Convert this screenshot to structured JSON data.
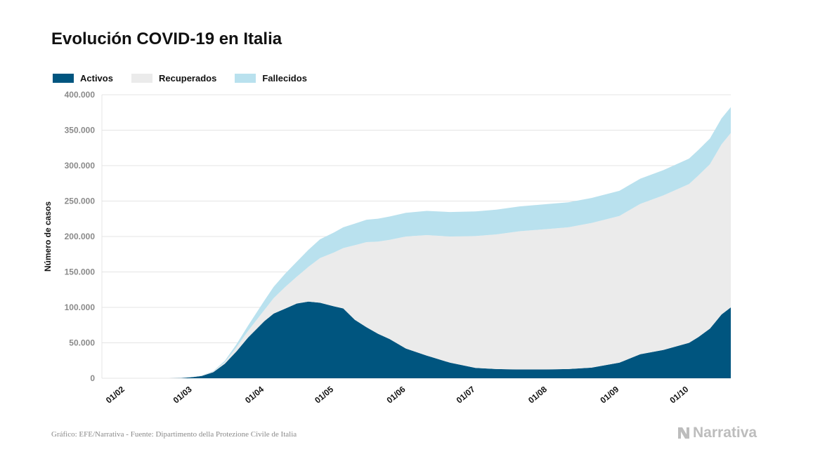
{
  "header": {
    "title": "Evolución COVID-19 en Italia"
  },
  "legend": {
    "items": [
      {
        "label": "Activos",
        "color": "#00557f"
      },
      {
        "label": "Recuperados",
        "color": "#ebebeb"
      },
      {
        "label": "Fallecidos",
        "color": "#b9e1ee"
      }
    ]
  },
  "footer": {
    "source": "Gráfico: EFE/Narrativa - Fuente: Dipartimento della Protezione Civile de Italia",
    "brand": "Narrativa"
  },
  "chart_data": {
    "type": "area",
    "stacked": true,
    "title": "Evolución COVID-19 en Italia",
    "ylabel": "Número de casos",
    "xlabel": "",
    "ylim": [
      0,
      400000
    ],
    "y_ticks": [
      "0",
      "50.000",
      "100.000",
      "150.000",
      "200.000",
      "250.000",
      "300.000",
      "350.000",
      "400.000"
    ],
    "x_ticks": [
      "01/02",
      "01/03",
      "01/04",
      "01/05",
      "01/06",
      "01/07",
      "01/08",
      "01/09",
      "01/10"
    ],
    "x_range": [
      "2020-01-22",
      "2020-10-19"
    ],
    "grid": true,
    "legend_position": "top-left",
    "x": [
      "2020-02-20",
      "2020-02-25",
      "2020-03-01",
      "2020-03-05",
      "2020-03-10",
      "2020-03-15",
      "2020-03-20",
      "2020-03-25",
      "2020-04-01",
      "2020-04-05",
      "2020-04-10",
      "2020-04-15",
      "2020-04-20",
      "2020-04-25",
      "2020-05-01",
      "2020-05-05",
      "2020-05-10",
      "2020-05-15",
      "2020-05-20",
      "2020-05-25",
      "2020-06-01",
      "2020-06-10",
      "2020-06-20",
      "2020-07-01",
      "2020-07-10",
      "2020-07-20",
      "2020-08-01",
      "2020-08-10",
      "2020-08-20",
      "2020-09-01",
      "2020-09-10",
      "2020-09-20",
      "2020-10-01",
      "2020-10-05",
      "2020-10-10",
      "2020-10-15",
      "2020-10-19"
    ],
    "series": [
      {
        "name": "Activos",
        "color": "#00557f",
        "values": [
          0,
          300,
          1600,
          3300,
          8500,
          20600,
          37900,
          57500,
          80600,
          91200,
          98300,
          105400,
          108200,
          106500,
          101500,
          98500,
          82500,
          72100,
          62800,
          55300,
          42000,
          32000,
          22000,
          14600,
          13000,
          12400,
          12500,
          13000,
          15000,
          22000,
          34000,
          40000,
          50000,
          58000,
          70000,
          90000,
          100000
        ]
      },
      {
        "name": "Recuperados",
        "color": "#ebebeb",
        "values": [
          0,
          0,
          100,
          500,
          1000,
          2300,
          6000,
          9400,
          15700,
          21800,
          30500,
          38000,
          48900,
          63100,
          75900,
          85200,
          105200,
          120000,
          130000,
          140000,
          158000,
          170000,
          178000,
          186000,
          190000,
          195000,
          198000,
          200000,
          204000,
          207000,
          212000,
          218000,
          224000,
          228000,
          232000,
          240000,
          246000
        ]
      },
      {
        "name": "Fallecidos",
        "color": "#b9e1ee",
        "values": [
          0,
          10,
          30,
          150,
          600,
          1800,
          4000,
          7500,
          13200,
          15900,
          18800,
          21100,
          24100,
          26400,
          28200,
          29300,
          30500,
          31600,
          32300,
          32900,
          33500,
          34100,
          34600,
          34800,
          34900,
          35100,
          35200,
          35300,
          35400,
          35500,
          35600,
          35700,
          35900,
          36000,
          36200,
          36500,
          36600
        ]
      }
    ]
  }
}
